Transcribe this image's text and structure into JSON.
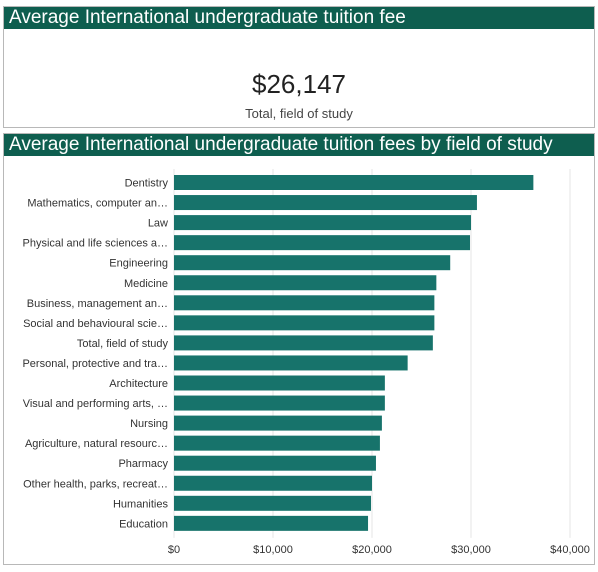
{
  "kpi": {
    "title": "Average International undergraduate tuition fee",
    "value": "$26,147",
    "label": "Total, field of study"
  },
  "chart_data": {
    "type": "bar",
    "orientation": "horizontal",
    "title": "Average International undergraduate tuition fees by field of study",
    "categories": [
      "Dentistry",
      "Mathematics, computer an…",
      "Law",
      "Physical and life sciences a…",
      "Engineering",
      "Medicine",
      "Business, management an…",
      "Social and behavioural scie…",
      "Total, field of study",
      "Personal, protective and tra…",
      "Architecture",
      "Visual and performing arts, …",
      "Nursing",
      "Agriculture, natural resourc…",
      "Pharmacy",
      "Other health, parks, recreat…",
      "Humanities",
      "Education"
    ],
    "values": [
      36300,
      30600,
      30000,
      29900,
      27900,
      26500,
      26300,
      26300,
      26147,
      23600,
      21300,
      21300,
      21000,
      20800,
      20400,
      20000,
      19900,
      19600
    ],
    "xlim": [
      0,
      40000
    ],
    "xticks": [
      {
        "value": 0,
        "label": "$0"
      },
      {
        "value": 10000,
        "label": "$10,000"
      },
      {
        "value": 20000,
        "label": "$20,000"
      },
      {
        "value": 30000,
        "label": "$30,000"
      },
      {
        "value": 40000,
        "label": "$40,000"
      }
    ],
    "grid": true,
    "bar_color": "#17736b"
  }
}
